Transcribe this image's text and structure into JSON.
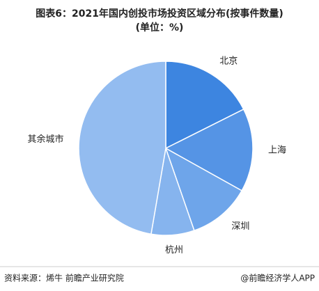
{
  "chart_data": {
    "type": "pie",
    "title": "图表6：2021年国内创投市场投资区域分布(按事件数量)",
    "subtitle": "(单位：%)",
    "categories": [
      "北京",
      "上海",
      "深圳",
      "杭州",
      "其余城市"
    ],
    "values": [
      17.6,
      15.5,
      11.6,
      8.0,
      47.3
    ],
    "colors": [
      "#3d85e0",
      "#5594e5",
      "#6ea5ea",
      "#86b4ee",
      "#93bcf0"
    ]
  },
  "footer": {
    "source": "资料来源：烯牛 前瞻产业研究院",
    "brand": "@前瞻经济学人APP"
  }
}
